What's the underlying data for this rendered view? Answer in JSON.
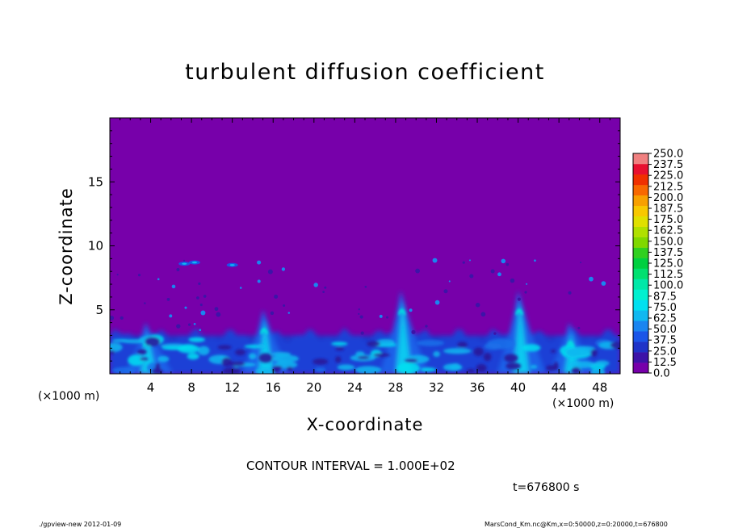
{
  "page": {
    "footer_left": "./gpview-new  2012-01-09",
    "footer_right": "MarsCond_Km.nc@Km,x=0:50000,z=0:20000,t=676800",
    "contour_interval": "CONTOUR INTERVAL = 1.000E+02",
    "time_label": "t=676800 s"
  },
  "chart_data": {
    "type": "heatmap",
    "title": "turbulent diffusion coefficient",
    "xlabel": "X-coordinate",
    "ylabel": "Z-coordinate",
    "x_unit": "(×1000 m)",
    "x_unit_right": "(×1000 m)",
    "xlim": [
      0,
      50
    ],
    "ylim": [
      0,
      20
    ],
    "x_ticks": [
      4,
      8,
      12,
      16,
      20,
      24,
      28,
      32,
      36,
      40,
      44,
      48
    ],
    "y_ticks": [
      5,
      10,
      15
    ],
    "background_value": 0.0,
    "colorbar": {
      "levels": [
        "0.0",
        "12.5",
        "25.0",
        "37.5",
        "50.0",
        "62.5",
        "75.0",
        "87.5",
        "100.0",
        "112.5",
        "125.0",
        "137.5",
        "150.0",
        "162.5",
        "175.0",
        "187.5",
        "200.0",
        "212.5",
        "225.0",
        "237.5",
        "250.0"
      ],
      "colors": [
        "#7700aa",
        "#3d13a8",
        "#1f33c8",
        "#1a55e8",
        "#1a85f0",
        "#10b8f0",
        "#00e0f0",
        "#00f0d0",
        "#00e8a8",
        "#00e070",
        "#00d040",
        "#30d020",
        "#80d800",
        "#b0e000",
        "#e0e000",
        "#f8c800",
        "#f8a000",
        "#f86800",
        "#f03000",
        "#e81030",
        "#f08080"
      ]
    },
    "features": [
      {
        "kind": "turbulent boundary layer",
        "x_range": [
          0,
          50
        ],
        "z_top_approx": 3
      },
      {
        "kind": "plume",
        "x_center": 3.5,
        "z_top": 4
      },
      {
        "kind": "plume",
        "x_center": 15,
        "z_top": 5
      },
      {
        "kind": "plume",
        "x_center": 28.5,
        "z_top": 6.5
      },
      {
        "kind": "plume",
        "x_center": 40,
        "z_top": 6.5
      },
      {
        "kind": "plume",
        "x_center": 45,
        "z_top": 4
      }
    ]
  }
}
